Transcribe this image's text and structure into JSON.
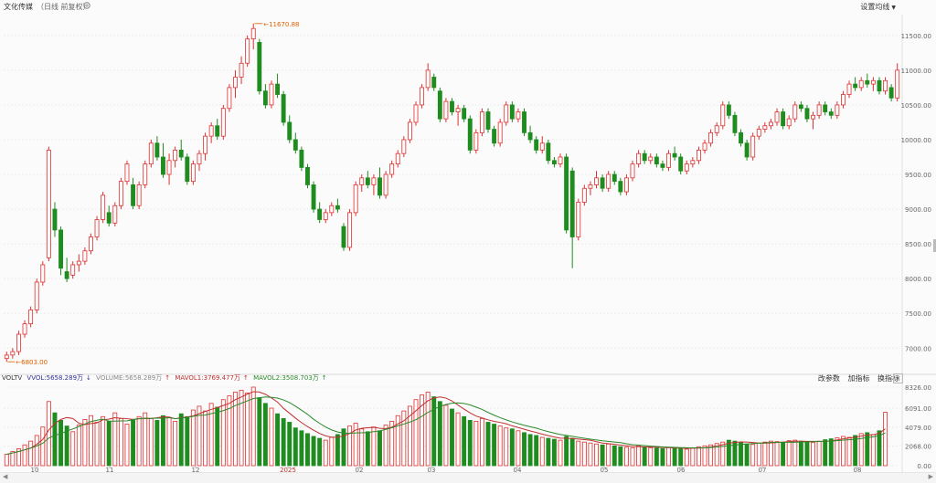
{
  "header": {
    "title": "文化传媒",
    "subtitle": "（日线 前复权）",
    "ma_setting": "设置均线"
  },
  "indicator": {
    "name": "VOLTV",
    "vol": "VVOL:5658.289万",
    "vol_arrow": "↓",
    "volume": "VOLUME:5658.289万",
    "volume_arrow": "↑",
    "ma1": "MAVOL1:3769.477万",
    "ma1_arrow": "↑",
    "ma2": "MAVOL2:3508.703万",
    "ma2_arrow": "↑"
  },
  "buttons": {
    "change_params": "改参数",
    "add_indicator": "加指标",
    "switch_indicator": "换指标",
    "close": "×"
  },
  "price_axis": [
    "11500.00",
    "11000.00",
    "10500.00",
    "10000.00",
    "9500.00",
    "9000.00",
    "8500.00",
    "8000.00",
    "7500.00",
    "7000.00"
  ],
  "volume_axis": [
    "8326.00",
    "6091.00",
    "4079.00",
    "2068.00",
    "0.00"
  ],
  "x_axis": [
    "10",
    "11",
    "12",
    "2025",
    "02",
    "03",
    "04",
    "05",
    "06",
    "07",
    "08"
  ],
  "annotations": {
    "high": "11670.88",
    "low": "6803.00"
  },
  "colors": {
    "up": "#e03030",
    "down": "#1e8c1e",
    "ma1": "#c03030",
    "ma2": "#2a8a2a",
    "label": "#e06000"
  },
  "chart_data": {
    "type": "candlestick",
    "title": "文化传媒",
    "ylim": [
      6780,
      11800
    ],
    "x_ticks": [
      "10",
      "11",
      "12",
      "2025",
      "02",
      "03",
      "04",
      "05",
      "06",
      "07",
      "08"
    ],
    "ohlc": [
      [
        6850,
        6950,
        6803,
        6900
      ],
      [
        6900,
        7000,
        6850,
        6950
      ],
      [
        6950,
        7250,
        6900,
        7200
      ],
      [
        7200,
        7400,
        7150,
        7350
      ],
      [
        7350,
        7600,
        7300,
        7550
      ],
      [
        7550,
        8000,
        7500,
        7950
      ],
      [
        7950,
        8250,
        7900,
        8200
      ],
      [
        8300,
        9900,
        8250,
        9850
      ],
      [
        9000,
        9100,
        8600,
        8700
      ],
      [
        8700,
        8750,
        8050,
        8150
      ],
      [
        8100,
        8300,
        7950,
        8000
      ],
      [
        8050,
        8250,
        8000,
        8200
      ],
      [
        8200,
        8350,
        8100,
        8250
      ],
      [
        8250,
        8450,
        8200,
        8400
      ],
      [
        8400,
        8650,
        8350,
        8600
      ],
      [
        8600,
        8900,
        8550,
        8850
      ],
      [
        8850,
        9250,
        8800,
        9200
      ],
      [
        8950,
        9050,
        8750,
        8800
      ],
      [
        8800,
        9100,
        8750,
        9050
      ],
      [
        9050,
        9450,
        9000,
        9400
      ],
      [
        9400,
        9700,
        9350,
        9650
      ],
      [
        9350,
        9450,
        9000,
        9050
      ],
      [
        9050,
        9400,
        9000,
        9350
      ],
      [
        9350,
        9700,
        9300,
        9650
      ],
      [
        9650,
        10000,
        9600,
        9950
      ],
      [
        9950,
        10050,
        9700,
        9750
      ],
      [
        9750,
        9950,
        9450,
        9500
      ],
      [
        9500,
        9800,
        9350,
        9700
      ],
      [
        9700,
        9900,
        9600,
        9850
      ],
      [
        9850,
        10000,
        9700,
        9750
      ],
      [
        9750,
        9800,
        9350,
        9400
      ],
      [
        9400,
        9700,
        9350,
        9650
      ],
      [
        9650,
        9850,
        9550,
        9800
      ],
      [
        9800,
        10100,
        9700,
        10050
      ],
      [
        10050,
        10250,
        9950,
        10200
      ],
      [
        10200,
        10300,
        10000,
        10050
      ],
      [
        10050,
        10500,
        10000,
        10450
      ],
      [
        10450,
        10800,
        10400,
        10750
      ],
      [
        10750,
        11000,
        10600,
        10900
      ],
      [
        10900,
        11200,
        10800,
        11100
      ],
      [
        11100,
        11500,
        11050,
        11450
      ],
      [
        11450,
        11671,
        11300,
        11600
      ],
      [
        11400,
        11450,
        10650,
        10700
      ],
      [
        10700,
        10800,
        10450,
        10500
      ],
      [
        10500,
        10850,
        10450,
        10800
      ],
      [
        10800,
        10950,
        10600,
        10650
      ],
      [
        10650,
        10700,
        10200,
        10250
      ],
      [
        10250,
        10350,
        9950,
        10000
      ],
      [
        10000,
        10100,
        9800,
        9850
      ],
      [
        9850,
        9900,
        9550,
        9600
      ],
      [
        9600,
        9650,
        9300,
        9350
      ],
      [
        9350,
        9400,
        8950,
        9000
      ],
      [
        9000,
        9100,
        8800,
        8850
      ],
      [
        8850,
        9000,
        8800,
        8950
      ],
      [
        8950,
        9100,
        8900,
        9050
      ],
      [
        9050,
        9150,
        8950,
        9000
      ],
      [
        8750,
        8800,
        8400,
        8450
      ],
      [
        8450,
        9000,
        8400,
        8950
      ],
      [
        8950,
        9400,
        8900,
        9350
      ],
      [
        9350,
        9500,
        9250,
        9450
      ],
      [
        9450,
        9550,
        9300,
        9350
      ],
      [
        9350,
        9500,
        9200,
        9450
      ],
      [
        9450,
        9600,
        9150,
        9200
      ],
      [
        9200,
        9550,
        9150,
        9500
      ],
      [
        9500,
        9700,
        9450,
        9650
      ],
      [
        9650,
        9850,
        9600,
        9800
      ],
      [
        9800,
        10050,
        9750,
        10000
      ],
      [
        10000,
        10300,
        9950,
        10250
      ],
      [
        10250,
        10550,
        10200,
        10500
      ],
      [
        10500,
        10800,
        10450,
        10750
      ],
      [
        10750,
        11100,
        10700,
        11000
      ],
      [
        10900,
        10950,
        10700,
        10750
      ],
      [
        10700,
        10750,
        10250,
        10300
      ],
      [
        10300,
        10600,
        10250,
        10550
      ],
      [
        10550,
        10600,
        10350,
        10400
      ],
      [
        10400,
        10500,
        10200,
        10450
      ],
      [
        10450,
        10500,
        10250,
        10300
      ],
      [
        10300,
        10350,
        9800,
        9850
      ],
      [
        9850,
        10150,
        9800,
        10100
      ],
      [
        10100,
        10450,
        10050,
        10400
      ],
      [
        10400,
        10450,
        10100,
        10150
      ],
      [
        10150,
        10200,
        9900,
        9950
      ],
      [
        9950,
        10300,
        9900,
        10250
      ],
      [
        10250,
        10550,
        10200,
        10500
      ],
      [
        10500,
        10550,
        10250,
        10300
      ],
      [
        10300,
        10450,
        10250,
        10400
      ],
      [
        10400,
        10450,
        10050,
        10100
      ],
      [
        10100,
        10200,
        9950,
        10000
      ],
      [
        10000,
        10050,
        9800,
        9850
      ],
      [
        9850,
        10050,
        9800,
        9950
      ],
      [
        9950,
        10000,
        9650,
        9700
      ],
      [
        9700,
        9750,
        9600,
        9650
      ],
      [
        9650,
        9800,
        9600,
        9750
      ],
      [
        9750,
        9800,
        8650,
        8700
      ],
      [
        9550,
        9600,
        8150,
        8600
      ],
      [
        8600,
        9150,
        8550,
        9100
      ],
      [
        9100,
        9350,
        9050,
        9300
      ],
      [
        9300,
        9400,
        9200,
        9350
      ],
      [
        9350,
        9550,
        9300,
        9450
      ],
      [
        9450,
        9500,
        9250,
        9300
      ],
      [
        9300,
        9550,
        9250,
        9500
      ],
      [
        9500,
        9550,
        9350,
        9400
      ],
      [
        9400,
        9450,
        9200,
        9250
      ],
      [
        9250,
        9500,
        9200,
        9450
      ],
      [
        9450,
        9700,
        9400,
        9650
      ],
      [
        9650,
        9850,
        9600,
        9800
      ],
      [
        9800,
        9850,
        9650,
        9700
      ],
      [
        9700,
        9800,
        9650,
        9750
      ],
      [
        9750,
        9800,
        9600,
        9650
      ],
      [
        9650,
        9700,
        9550,
        9600
      ],
      [
        9600,
        9850,
        9550,
        9800
      ],
      [
        9800,
        9900,
        9700,
        9750
      ],
      [
        9750,
        9800,
        9500,
        9550
      ],
      [
        9550,
        9700,
        9500,
        9650
      ],
      [
        9650,
        9750,
        9600,
        9700
      ],
      [
        9700,
        9900,
        9650,
        9850
      ],
      [
        9850,
        10000,
        9800,
        9950
      ],
      [
        9950,
        10150,
        9900,
        10100
      ],
      [
        10100,
        10250,
        10050,
        10200
      ],
      [
        10200,
        10550,
        10150,
        10500
      ],
      [
        10500,
        10550,
        10300,
        10350
      ],
      [
        10350,
        10400,
        10050,
        10100
      ],
      [
        10100,
        10150,
        9900,
        9950
      ],
      [
        9950,
        10000,
        9700,
        9750
      ],
      [
        9750,
        10100,
        9700,
        10050
      ],
      [
        10050,
        10200,
        10000,
        10150
      ],
      [
        10150,
        10250,
        10100,
        10200
      ],
      [
        10200,
        10300,
        10150,
        10250
      ],
      [
        10250,
        10450,
        10200,
        10400
      ],
      [
        10400,
        10450,
        10150,
        10200
      ],
      [
        10200,
        10350,
        10150,
        10300
      ],
      [
        10300,
        10550,
        10250,
        10500
      ],
      [
        10500,
        10550,
        10400,
        10450
      ],
      [
        10450,
        10500,
        10250,
        10300
      ],
      [
        10300,
        10400,
        10150,
        10350
      ],
      [
        10350,
        10550,
        10300,
        10500
      ],
      [
        10500,
        10550,
        10350,
        10400
      ],
      [
        10400,
        10450,
        10300,
        10350
      ],
      [
        10350,
        10550,
        10300,
        10500
      ],
      [
        10500,
        10700,
        10450,
        10650
      ],
      [
        10650,
        10850,
        10600,
        10800
      ],
      [
        10800,
        10900,
        10700,
        10750
      ],
      [
        10750,
        10900,
        10700,
        10850
      ],
      [
        10850,
        10950,
        10750,
        10800
      ],
      [
        10800,
        10900,
        10700,
        10850
      ],
      [
        10850,
        10900,
        10650,
        10700
      ],
      [
        10700,
        10900,
        10650,
        10850
      ],
      [
        10750,
        10800,
        10550,
        10600
      ],
      [
        10600,
        11100,
        10550,
        11000
      ]
    ],
    "volume": [
      1200,
      1500,
      1800,
      2200,
      2600,
      3200,
      4100,
      6800,
      5600,
      4800,
      4200,
      3600,
      4300,
      4900,
      5300,
      4600,
      5200,
      4700,
      5600,
      5000,
      4400,
      4800,
      5200,
      5600,
      5000,
      4800,
      5300,
      5100,
      4700,
      5500,
      5200,
      5900,
      6300,
      5800,
      6600,
      6200,
      7000,
      7400,
      7800,
      8000,
      7700,
      8326,
      7200,
      6600,
      6100,
      5500,
      5000,
      4600,
      4000,
      3700,
      3400,
      3100,
      2900,
      2700,
      3000,
      3300,
      3900,
      4200,
      4500,
      3900,
      3600,
      4100,
      3700,
      4300,
      4700,
      5300,
      5800,
      6300,
      7000,
      7500,
      7800,
      7300,
      6800,
      6400,
      6000,
      5600,
      5200,
      4800,
      4700,
      5000,
      4600,
      4400,
      4200,
      4000,
      3900,
      3700,
      3500,
      3300,
      3200,
      3000,
      2900,
      2800,
      2700,
      3100,
      2900,
      2600,
      2500,
      2400,
      2300,
      2200,
      2300,
      2100,
      2000,
      1950,
      1900,
      2100,
      2000,
      1900,
      1850,
      1800,
      1950,
      1900,
      1800,
      1750,
      1850,
      2000,
      2100,
      2200,
      2350,
      2500,
      2700,
      2600,
      2450,
      2300,
      2250,
      2400,
      2500,
      2600,
      2550,
      2450,
      2650,
      2700,
      2600,
      2500,
      2450,
      2600,
      2750,
      2850,
      2950,
      3100,
      3000,
      3200,
      3400,
      3500,
      3300,
      3700,
      5658
    ],
    "mavol1": [],
    "mavol2": []
  }
}
